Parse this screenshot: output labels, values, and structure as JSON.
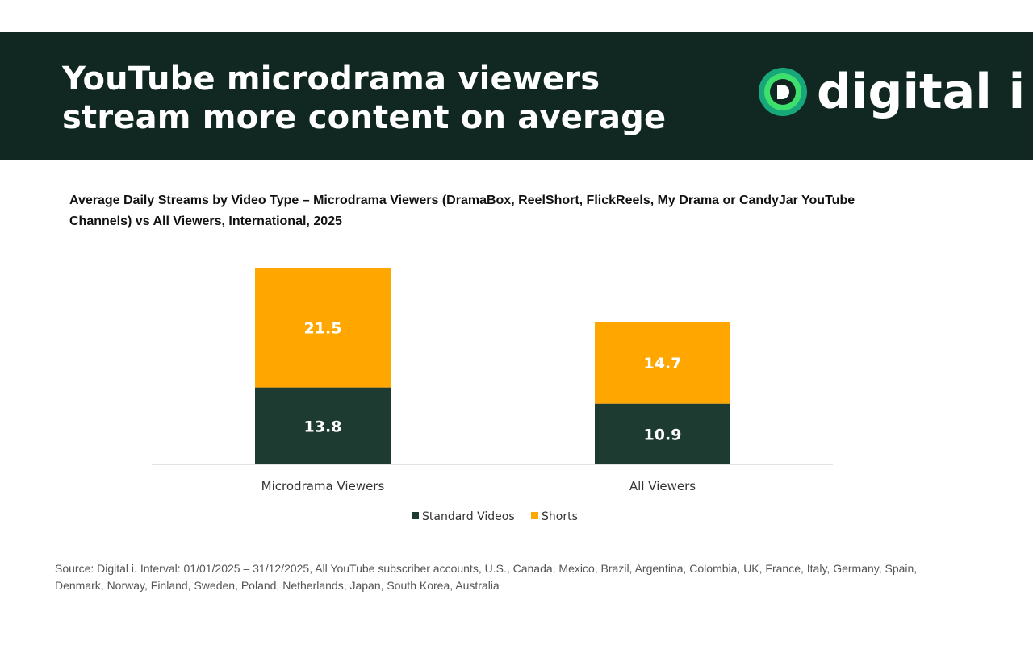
{
  "header": {
    "title_line1": "YouTube microdrama viewers",
    "title_line2": "stream more content on average",
    "logo_text": "digital i"
  },
  "chart_data": {
    "type": "bar",
    "stacked": true,
    "title": "Average Daily Streams by Video Type – Microdrama Viewers (DramaBox, ReelShort, FlickReels, My Drama or CandyJar YouTube Channels) vs All Viewers, International, 2025",
    "categories": [
      "Microdrama Viewers",
      "All Viewers"
    ],
    "series": [
      {
        "name": "Standard Videos",
        "values": [
          13.8,
          10.9
        ],
        "color": "#1d3b31"
      },
      {
        "name": "Shorts",
        "values": [
          21.5,
          14.7
        ],
        "color": "#ffa600"
      }
    ],
    "ylim": [
      0,
      35.3
    ],
    "grid": false,
    "legend": "bottom"
  },
  "footer": {
    "source": "Source: Digital i. Interval: 01/01/2025 – 31/12/2025, All YouTube subscriber accounts, U.S., Canada, Mexico, Brazil, Argentina, Colombia, UK, France, Italy, Germany, Spain, Denmark, Norway, Finland, Sweden, Poland, Netherlands, Japan, South Korea, Australia"
  }
}
